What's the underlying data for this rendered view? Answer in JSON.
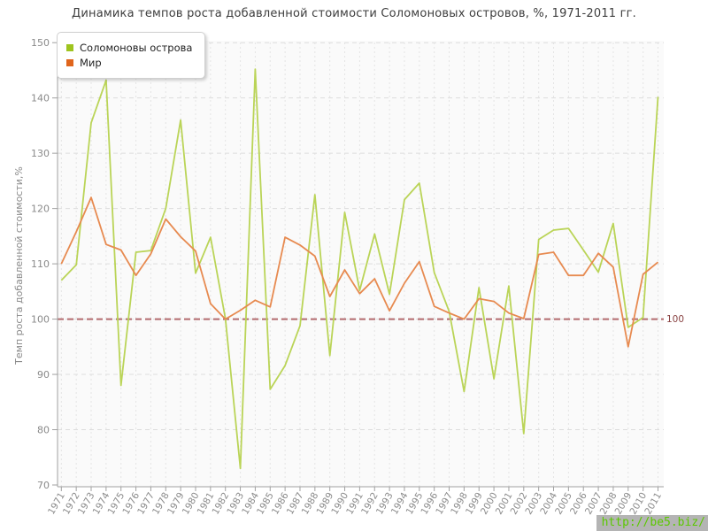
{
  "title": "Динамика темпов роста добавленной стоимости Соломоновых островов, %, 1971-2011 гг.",
  "legend": {
    "items": [
      {
        "label": "Соломоновы острова",
        "color": "#9ec41e"
      },
      {
        "label": "Мир",
        "color": "#e0651c"
      }
    ]
  },
  "watermark": "http://be5.biz/",
  "chart_data": {
    "type": "line",
    "title": "Динамика темпов роста добавленной стоимости Соломоновых островов, %, 1971-2011 гг.",
    "xlabel": "",
    "ylabel": "Темп роста добавленной стоимости,%",
    "ylim": [
      70,
      150
    ],
    "yticks": [
      70,
      80,
      90,
      100,
      110,
      120,
      130,
      140,
      150
    ],
    "grid": true,
    "legend_position": "top-left",
    "baseline": {
      "value": 100,
      "label": "100",
      "color": "#b26a6e",
      "label_color": "#8a4444"
    },
    "x": [
      1971,
      1972,
      1973,
      1974,
      1975,
      1976,
      1977,
      1978,
      1979,
      1980,
      1981,
      1982,
      1983,
      1984,
      1985,
      1986,
      1987,
      1988,
      1989,
      1990,
      1991,
      1992,
      1993,
      1994,
      1995,
      1996,
      1997,
      1998,
      1999,
      2000,
      2001,
      2002,
      2003,
      2004,
      2005,
      2006,
      2007,
      2008,
      2009,
      2010,
      2011
    ],
    "series": [
      {
        "name": "Соломоновы острова",
        "color": "#bad457",
        "values": [
          107.0,
          109.8,
          135.5,
          143.2,
          88.0,
          112.1,
          112.4,
          120.0,
          136.0,
          108.3,
          114.8,
          100.1,
          73.0,
          145.2,
          87.3,
          91.6,
          98.8,
          122.5,
          93.4,
          119.3,
          105.2,
          115.4,
          104.5,
          121.6,
          124.6,
          108.4,
          101.4,
          86.9,
          105.7,
          89.2,
          106.0,
          79.3,
          114.4,
          116.1,
          116.4,
          112.5,
          108.5,
          117.3,
          98.5,
          100.3,
          140.2
        ]
      },
      {
        "name": "Мир",
        "color": "#e78a50",
        "values": [
          110.0,
          115.8,
          122.0,
          113.5,
          112.5,
          107.9,
          111.8,
          118.1,
          114.9,
          112.3,
          102.8,
          100.0,
          101.6,
          103.4,
          102.2,
          114.8,
          113.4,
          111.4,
          104.1,
          108.9,
          104.6,
          107.3,
          101.5,
          106.5,
          110.4,
          102.3,
          101.1,
          100.0,
          103.7,
          103.2,
          101.1,
          100.1,
          111.7,
          112.1,
          107.9,
          107.9,
          111.9,
          109.4,
          95.0,
          108.1,
          110.3
        ]
      }
    ]
  }
}
